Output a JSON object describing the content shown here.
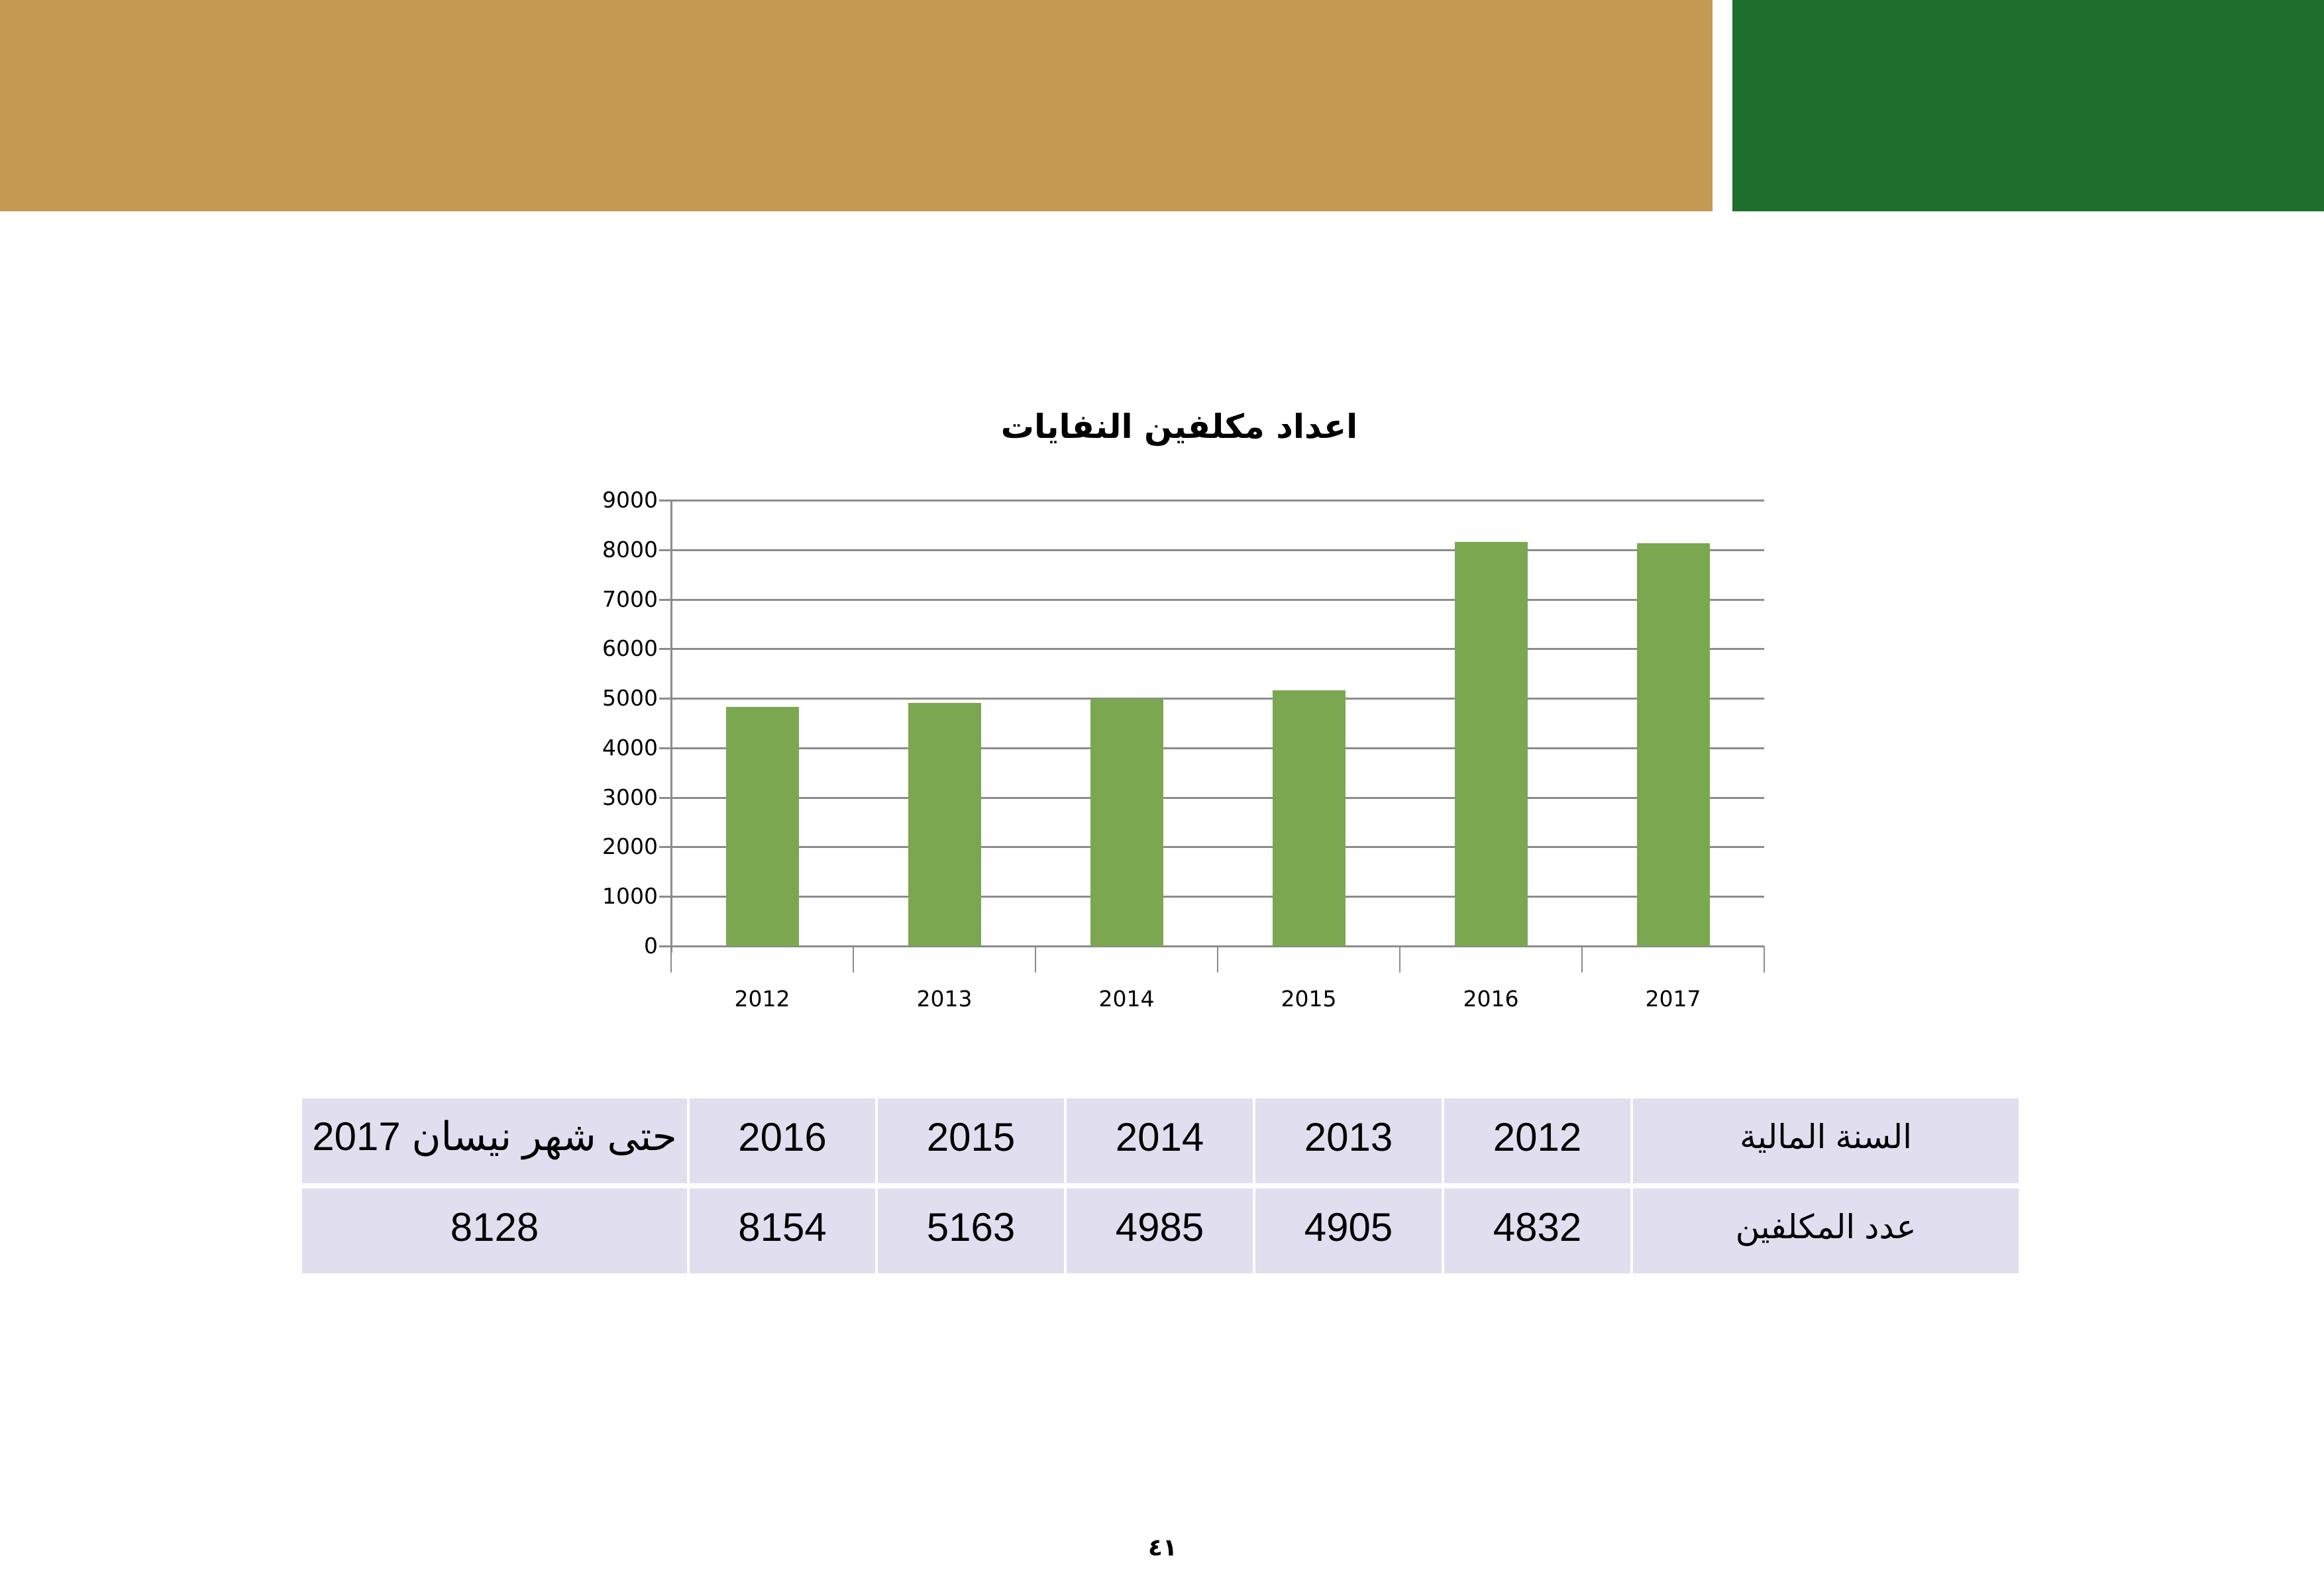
{
  "header": {
    "gold_color": "#C49A53",
    "green_color": "#1E6F2D"
  },
  "chart_data": {
    "type": "bar",
    "title": "اعداد مكلفين النفايات",
    "categories": [
      "2012",
      "2013",
      "2014",
      "2015",
      "2016",
      "2017"
    ],
    "values": [
      4832,
      4905,
      4985,
      5163,
      8154,
      8128
    ],
    "xlabel": "",
    "ylabel": "",
    "ylim": [
      0,
      9000
    ],
    "yticks": [
      0,
      1000,
      2000,
      3000,
      4000,
      5000,
      6000,
      7000,
      8000,
      9000
    ],
    "grid": true,
    "legend": "none",
    "bar_color": "#7BA751"
  },
  "table": {
    "row_labels": [
      "السنة المالية",
      "عدد المكلفين"
    ],
    "years": [
      "2012",
      "2013",
      "2014",
      "2015",
      "2016",
      "حتى شهر نيسان 2017"
    ],
    "counts": [
      "4832",
      "4905",
      "4985",
      "5163",
      "8154",
      "8128"
    ],
    "cell_color": "#E0DEEF"
  },
  "footer": {
    "page_number": "٤١"
  }
}
